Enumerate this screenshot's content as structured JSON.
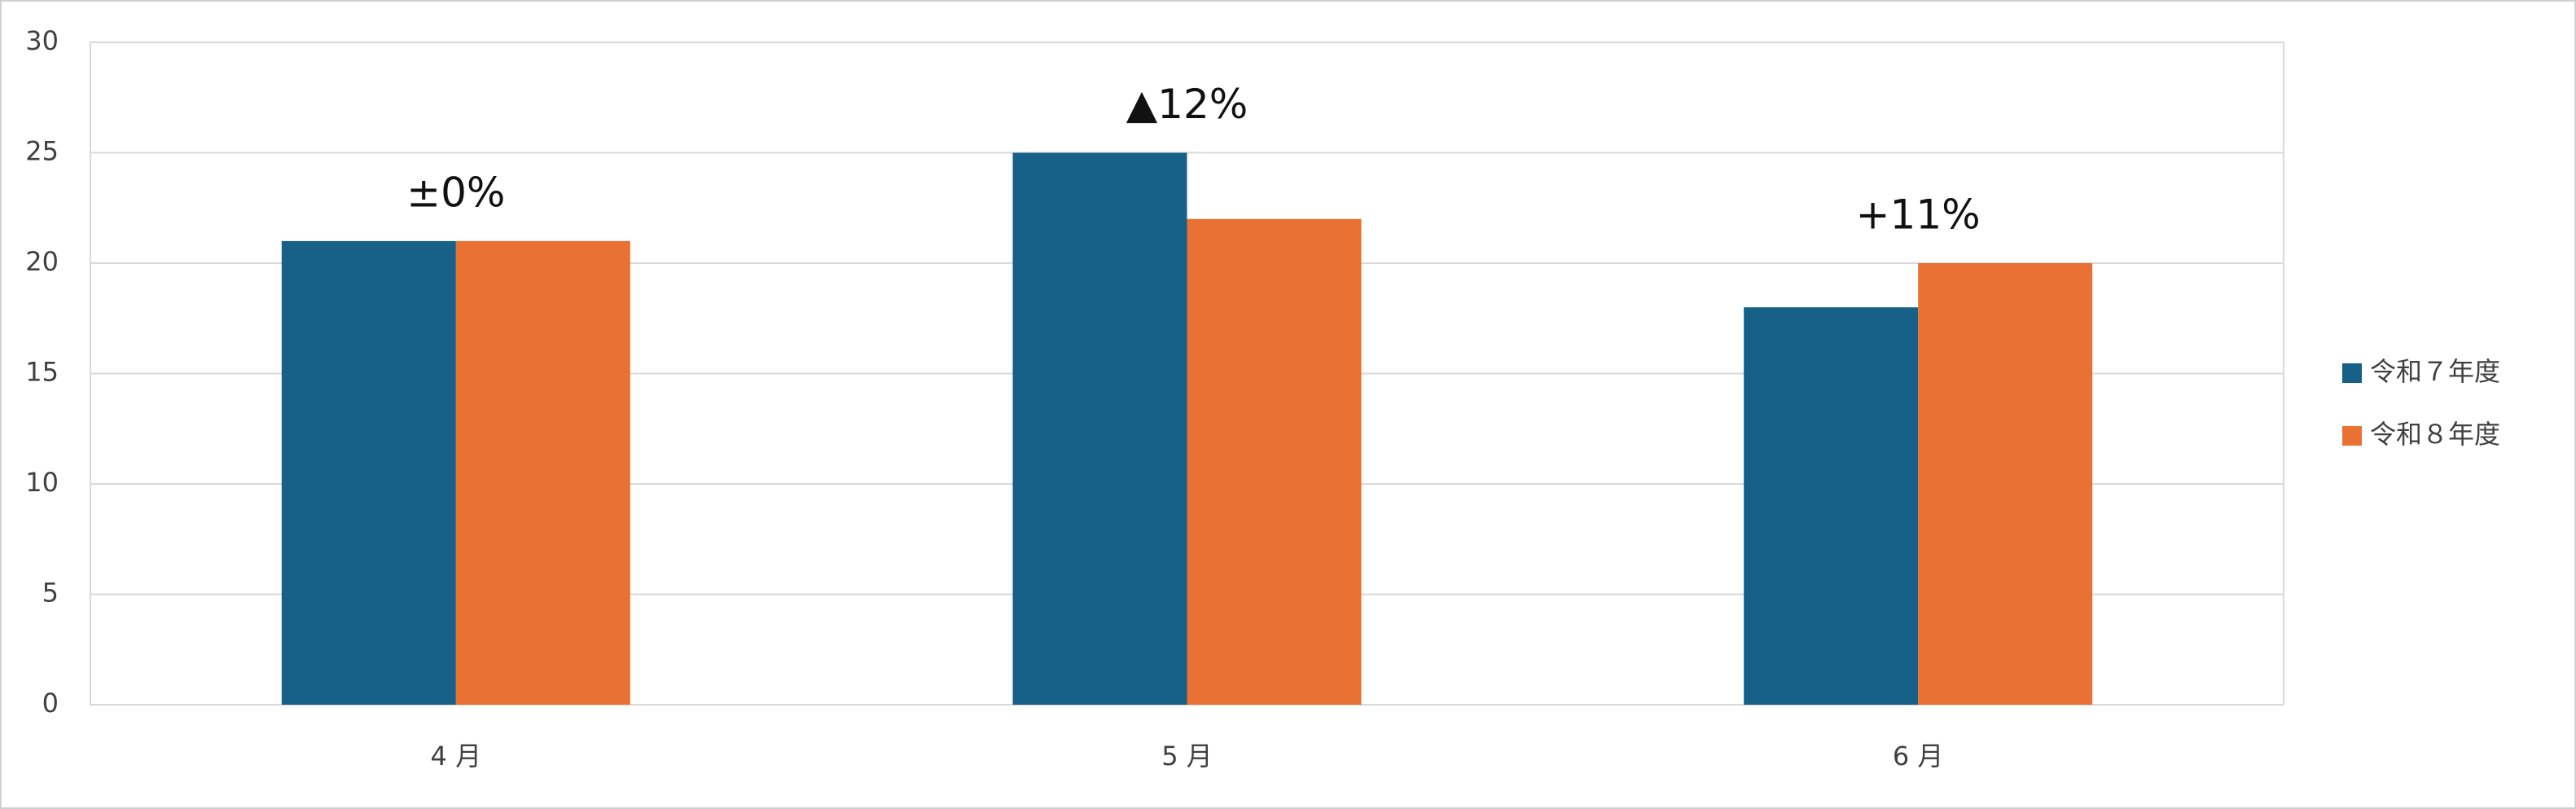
{
  "chart_data": {
    "type": "bar",
    "categories": [
      "4 月",
      "5 月",
      "6 月"
    ],
    "series": [
      {
        "name": "令和７年度",
        "color": "#176087",
        "values": [
          21,
          25,
          18
        ]
      },
      {
        "name": "令和８年度",
        "color": "#ea7134",
        "values": [
          21,
          22,
          20
        ]
      }
    ],
    "annotations": [
      "±0%",
      "▲12%",
      "+11%"
    ],
    "ylim": [
      0,
      30
    ],
    "yticks": [
      0,
      5,
      10,
      15,
      20,
      25,
      30
    ],
    "grid": true,
    "legend": "right"
  }
}
